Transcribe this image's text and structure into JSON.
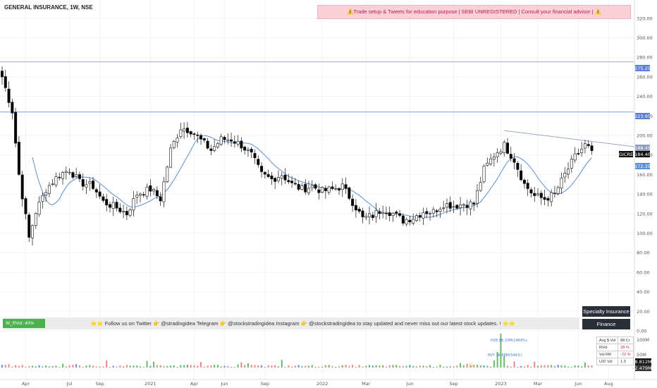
{
  "header": {
    "title": "GENERAL INSURANCE, 1W, NSE",
    "warning": "⚠️Trade setup & Tweets for education purpose | SEBI UNREGISTERED | Consult your financial advisor | ⚠️"
  },
  "follow_bar": {
    "badge": "W_RVol: 40%",
    "text": "⭐⭐ Follow us on Twitter 👉 @stradingidea   Telegram 👉 @stockstradingidea  Instagram 👉 @stockstradingidea to stay updated and never miss out our latest stock updates. ! ⭐⭐"
  },
  "sector": {
    "industry": "Specialty Insurance",
    "sector": "Finance"
  },
  "stats": {
    "rows": [
      {
        "label": "Avg $ Vol",
        "value": "88 Cr"
      },
      {
        "label": "RVol",
        "value": "28 %"
      },
      {
        "label": "Vol RR",
        "value": "-72 %"
      },
      {
        "label": "U/D Vol",
        "value": "1.3"
      }
    ]
  },
  "price_labels": {
    "resistance_top": "275.25",
    "resistance_mid": "223.95",
    "trendline": "188.45",
    "ticker": "GICRE",
    "last": "184.40",
    "ma": "172.35",
    "vol_last": "8.812M",
    "vol_ma": "2.479M"
  },
  "volume_labels": {
    "hve": "HVE 86.33M(1469%)",
    "hvy": "HVY 36.68M(544%)",
    "marker": "Q"
  },
  "colors": {
    "up": "#26a69a",
    "down": "#000000",
    "ma": "#5b8fd6",
    "level": "#6f8fdc",
    "trend": "#9ca7c8"
  },
  "chart_data": {
    "type": "candlestick",
    "title": "GENERAL INSURANCE, 1W, NSE",
    "ylim": [
      0,
      330
    ],
    "y_ticks": [
      0,
      20,
      40,
      60,
      80,
      100,
      120,
      140,
      160,
      180,
      200,
      220,
      240,
      260,
      280,
      300,
      320
    ],
    "y_tick_labels": [
      "0.00",
      "20.00",
      "40.00",
      "60.00",
      "80.00",
      "100.00",
      "120.00",
      "140.00",
      "160.00",
      "180.00",
      "200.00",
      "220.00",
      "240.00",
      "260.00",
      "280.00",
      "300.00",
      "320.00"
    ],
    "x_labels": [
      "Apr",
      "Jul",
      "Sep",
      "2021",
      "Apr",
      "Jun",
      "Sep",
      "2022",
      "Mar",
      "Jun",
      "Sep",
      "2023",
      "Mar",
      "Jun",
      "Aug"
    ],
    "x_label_weeks": [
      7,
      20,
      29,
      44,
      57,
      66,
      78,
      95,
      108,
      121,
      134,
      148,
      159,
      171,
      180
    ],
    "levels": [
      275.25,
      223.95
    ],
    "trendline": {
      "from": [
        149,
        205
      ],
      "to": [
        175,
        188.45
      ]
    },
    "volume_axis": {
      "labels": [
        "100M",
        "50M"
      ],
      "values": [
        100,
        50
      ]
    },
    "anchors": [
      [
        0,
        260
      ],
      [
        3,
        225
      ],
      [
        5,
        160
      ],
      [
        8,
        95
      ],
      [
        10,
        122
      ],
      [
        13,
        145
      ],
      [
        17,
        160
      ],
      [
        20,
        165
      ],
      [
        23,
        152
      ],
      [
        27,
        148
      ],
      [
        30,
        132
      ],
      [
        34,
        126
      ],
      [
        37,
        120
      ],
      [
        40,
        140
      ],
      [
        44,
        145
      ],
      [
        47,
        135
      ],
      [
        50,
        185
      ],
      [
        53,
        208
      ],
      [
        56,
        205
      ],
      [
        59,
        195
      ],
      [
        62,
        185
      ],
      [
        65,
        196
      ],
      [
        68,
        196
      ],
      [
        71,
        190
      ],
      [
        74,
        180
      ],
      [
        77,
        160
      ],
      [
        80,
        155
      ],
      [
        83,
        160
      ],
      [
        86,
        150
      ],
      [
        89,
        145
      ],
      [
        92,
        148
      ],
      [
        95,
        143
      ],
      [
        98,
        145
      ],
      [
        101,
        148
      ],
      [
        104,
        132
      ],
      [
        107,
        115
      ],
      [
        110,
        118
      ],
      [
        113,
        125
      ],
      [
        116,
        120
      ],
      [
        119,
        113
      ],
      [
        122,
        116
      ],
      [
        125,
        122
      ],
      [
        128,
        122
      ],
      [
        131,
        130
      ],
      [
        134,
        128
      ],
      [
        137,
        130
      ],
      [
        140,
        130
      ],
      [
        143,
        165
      ],
      [
        146,
        180
      ],
      [
        149,
        190
      ],
      [
        152,
        175
      ],
      [
        155,
        150
      ],
      [
        158,
        138
      ],
      [
        161,
        135
      ],
      [
        164,
        140
      ],
      [
        167,
        160
      ],
      [
        170,
        178
      ],
      [
        173,
        190
      ],
      [
        175,
        184.4
      ]
    ]
  }
}
